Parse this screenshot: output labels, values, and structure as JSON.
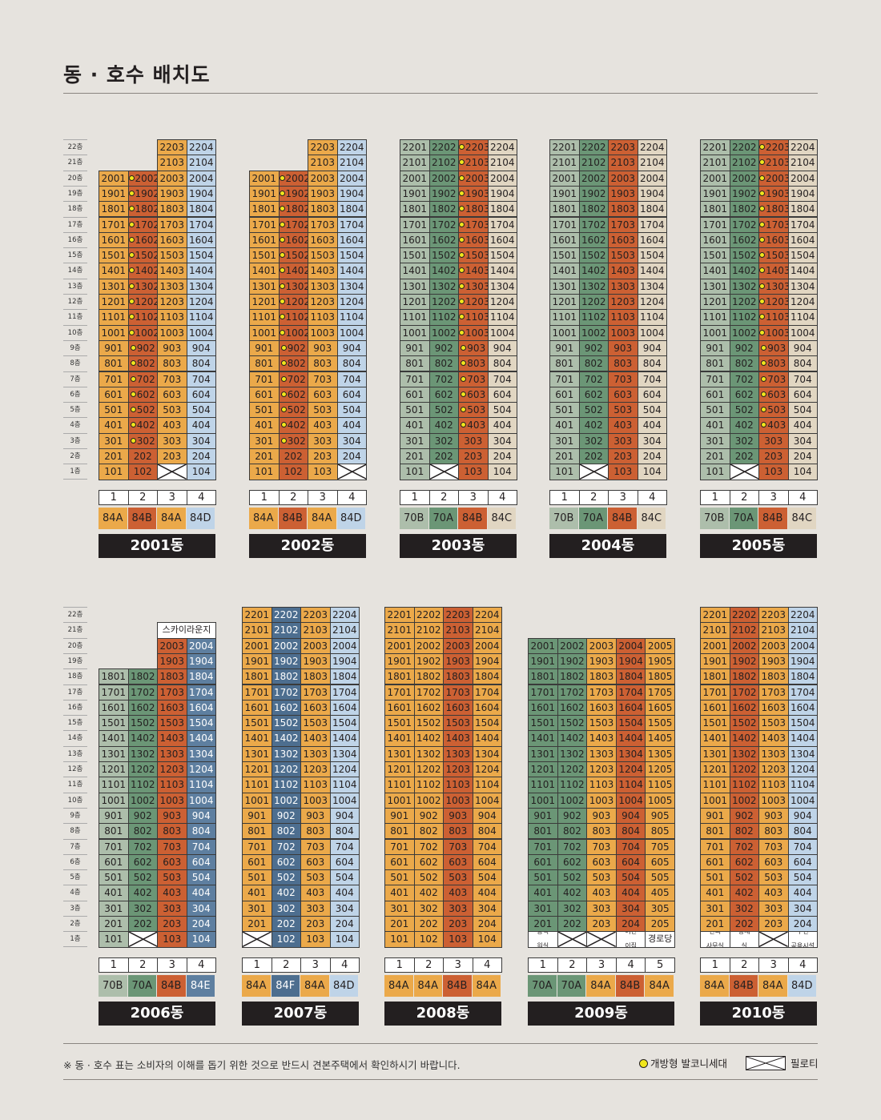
{
  "title": "동 · 호수 배치도",
  "colors": {
    "A84A": "#eba94a",
    "B84B": "#cc6033",
    "C84C": "#e1d6c2",
    "D84D": "#bfd4e8",
    "T70A": "#6b9676",
    "T70B": "#adbeab",
    "E84E": "#5e7fa0",
    "F84F": "#4d6e8f"
  },
  "floor_labels": [
    "22층",
    "21층",
    "20층",
    "19층",
    "18층",
    "17층",
    "16층",
    "15층",
    "14층",
    "13층",
    "12층",
    "11층",
    "10층",
    "9층",
    "8층",
    "7층",
    "6층",
    "5층",
    "4층",
    "3층",
    "2층",
    "1층"
  ],
  "buildings": [
    {
      "name": "2001동",
      "line_numbers": [
        "1",
        "2",
        "3",
        "4"
      ],
      "types": [
        "84A",
        "84B",
        "84A",
        "84D"
      ],
      "columns": [
        {
          "type": "84A",
          "top": 20,
          "dot": false,
          "first": [
            {
              "kind": "unit"
            }
          ]
        },
        {
          "type": "84B",
          "top": 20,
          "dot": true,
          "first": [
            {
              "kind": "unit",
              "nodot": true
            },
            {
              "kind": "unit",
              "nodot": true
            }
          ]
        },
        {
          "type": "84A",
          "top": 22,
          "dot": false,
          "first": [
            {
              "kind": "piloti"
            }
          ]
        },
        {
          "type": "84D",
          "top": 22,
          "dot": false,
          "first": [
            {
              "kind": "unit"
            }
          ]
        }
      ]
    },
    {
      "name": "2002동",
      "line_numbers": [
        "1",
        "2",
        "3",
        "4"
      ],
      "types": [
        "84A",
        "84B",
        "84A",
        "84D"
      ],
      "columns": [
        {
          "type": "84A",
          "top": 20,
          "dot": false,
          "first": [
            {
              "kind": "unit"
            }
          ]
        },
        {
          "type": "84B",
          "top": 20,
          "dot": true,
          "first": [
            {
              "kind": "unit",
              "nodot": true
            },
            {
              "kind": "unit",
              "nodot": true
            }
          ]
        },
        {
          "type": "84A",
          "top": 22,
          "dot": false,
          "first": [
            {
              "kind": "unit"
            }
          ]
        },
        {
          "type": "84D",
          "top": 22,
          "dot": false,
          "first": [
            {
              "kind": "piloti"
            }
          ]
        }
      ]
    },
    {
      "name": "2003동",
      "line_numbers": [
        "1",
        "2",
        "3",
        "4"
      ],
      "types": [
        "70B",
        "70A",
        "84B",
        "84C"
      ],
      "columns": [
        {
          "type": "70B",
          "top": 22,
          "dot": false,
          "first": [
            {
              "kind": "unit"
            }
          ]
        },
        {
          "type": "70A",
          "top": 22,
          "dot": false,
          "first": [
            {
              "kind": "piloti"
            }
          ]
        },
        {
          "type": "84B",
          "top": 22,
          "dot": true,
          "first": [
            {
              "kind": "unit",
              "nodot": true
            },
            {
              "kind": "unit",
              "nodot": true
            },
            {
              "kind": "unit",
              "nodot": true
            }
          ]
        },
        {
          "type": "84C",
          "top": 22,
          "dot": false,
          "first": [
            {
              "kind": "unit"
            }
          ]
        }
      ]
    },
    {
      "name": "2004동",
      "line_numbers": [
        "1",
        "2",
        "3",
        "4"
      ],
      "types": [
        "70B",
        "70A",
        "84B",
        "84C"
      ],
      "columns": [
        {
          "type": "70B",
          "top": 22,
          "dot": false,
          "first": [
            {
              "kind": "unit"
            }
          ]
        },
        {
          "type": "70A",
          "top": 22,
          "dot": false,
          "first": [
            {
              "kind": "piloti"
            }
          ]
        },
        {
          "type": "84B",
          "top": 22,
          "dot": false,
          "first": [
            {
              "kind": "unit"
            }
          ]
        },
        {
          "type": "84C",
          "top": 22,
          "dot": false,
          "first": [
            {
              "kind": "unit"
            }
          ]
        }
      ]
    },
    {
      "name": "2005동",
      "line_numbers": [
        "1",
        "2",
        "3",
        "4"
      ],
      "types": [
        "70B",
        "70A",
        "84B",
        "84C"
      ],
      "columns": [
        {
          "type": "70B",
          "top": 22,
          "dot": false,
          "first": [
            {
              "kind": "unit"
            }
          ]
        },
        {
          "type": "70A",
          "top": 22,
          "dot": false,
          "first": [
            {
              "kind": "piloti"
            }
          ]
        },
        {
          "type": "84B",
          "top": 22,
          "dot": true,
          "first": [
            {
              "kind": "unit",
              "nodot": true
            },
            {
              "kind": "unit",
              "nodot": true
            },
            {
              "kind": "unit",
              "nodot": true
            }
          ]
        },
        {
          "type": "84C",
          "top": 22,
          "dot": false,
          "first": [
            {
              "kind": "unit"
            }
          ]
        }
      ]
    },
    {
      "name": "2006동",
      "line_numbers": [
        "1",
        "2",
        "3",
        "4"
      ],
      "types": [
        "70B",
        "70A",
        "84B",
        "84E"
      ],
      "header_label": "스카이라운지",
      "columns": [
        {
          "type": "70B",
          "top": 18,
          "dot": false,
          "first": [
            {
              "kind": "unit"
            }
          ]
        },
        {
          "type": "70A",
          "top": 18,
          "dot": false,
          "first": [
            {
              "kind": "piloti"
            }
          ]
        },
        {
          "type": "84B",
          "top": 20,
          "dot": false,
          "first": [
            {
              "kind": "unit"
            }
          ]
        },
        {
          "type": "84E",
          "top": 20,
          "dot": false,
          "first": [
            {
              "kind": "unit"
            }
          ]
        }
      ]
    },
    {
      "name": "2007동",
      "line_numbers": [
        "1",
        "2",
        "3",
        "4"
      ],
      "types": [
        "84A",
        "84F",
        "84A",
        "84D"
      ],
      "columns": [
        {
          "type": "84A",
          "top": 22,
          "dot": false,
          "first": [
            {
              "kind": "piloti"
            }
          ]
        },
        {
          "type": "84F",
          "top": 22,
          "dot": false,
          "first": [
            {
              "kind": "unit"
            }
          ]
        },
        {
          "type": "84A",
          "top": 22,
          "dot": false,
          "first": [
            {
              "kind": "unit"
            }
          ]
        },
        {
          "type": "84D",
          "top": 22,
          "dot": false,
          "first": [
            {
              "kind": "unit"
            }
          ]
        }
      ]
    },
    {
      "name": "2008동",
      "line_numbers": [
        "1",
        "2",
        "3",
        "4"
      ],
      "types": [
        "84A",
        "84A",
        "84B",
        "84A"
      ],
      "columns": [
        {
          "type": "84A",
          "top": 22,
          "dot": false,
          "first": [
            {
              "kind": "unit"
            }
          ]
        },
        {
          "type": "84A",
          "top": 22,
          "dot": false,
          "first": [
            {
              "kind": "unit"
            }
          ]
        },
        {
          "type": "84B",
          "top": 22,
          "dot": false,
          "first": [
            {
              "kind": "unit"
            }
          ]
        },
        {
          "type": "84A",
          "top": 22,
          "dot": false,
          "first": [
            {
              "kind": "unit"
            }
          ]
        }
      ]
    },
    {
      "name": "2009동",
      "line_numbers": [
        "1",
        "2",
        "3",
        "4",
        "5"
      ],
      "types": [
        "70A",
        "70A",
        "84A",
        "84B",
        "84A"
      ],
      "columns": [
        {
          "type": "70A",
          "top": 20,
          "dot": false,
          "first": [
            {
              "kind": "special",
              "text": "공력\n원실"
            }
          ]
        },
        {
          "type": "70A",
          "top": 20,
          "dot": false,
          "first": [
            {
              "kind": "piloti"
            }
          ]
        },
        {
          "type": "84A",
          "top": 20,
          "dot": false,
          "first": [
            {
              "kind": "piloti"
            }
          ]
        },
        {
          "type": "84B",
          "top": 20,
          "dot": false,
          "first": [
            {
              "kind": "special",
              "text": "어린\n이집"
            }
          ]
        },
        {
          "type": "84A",
          "top": 20,
          "dot": false,
          "first": [
            {
              "kind": "special",
              "text": "경로당",
              "big": true
            }
          ]
        }
      ]
    },
    {
      "name": "2010동",
      "line_numbers": [
        "1",
        "2",
        "3",
        "4"
      ],
      "types": [
        "84A",
        "84B",
        "84A",
        "84D"
      ],
      "columns": [
        {
          "type": "84A",
          "top": 22,
          "dot": false,
          "first": [
            {
              "kind": "special",
              "text": "관리\n사무실"
            }
          ]
        },
        {
          "type": "84B",
          "top": 22,
          "dot": false,
          "first": [
            {
              "kind": "special",
              "text": "방재\n실"
            }
          ]
        },
        {
          "type": "84A",
          "top": 22,
          "dot": false,
          "first": [
            {
              "kind": "piloti"
            }
          ]
        },
        {
          "type": "84D",
          "top": 22,
          "dot": false,
          "first": [
            {
              "kind": "special",
              "text": "주민\n공용시설"
            }
          ]
        }
      ]
    }
  ],
  "footnote": "※ 동 · 호수 표는 소비자의 이해를 돕기 위한 것으로 반드시 견본주택에서 확인하시기 바랍니다.",
  "legend": {
    "balcony": "개방형 발코니세대",
    "piloti": "필로티"
  }
}
